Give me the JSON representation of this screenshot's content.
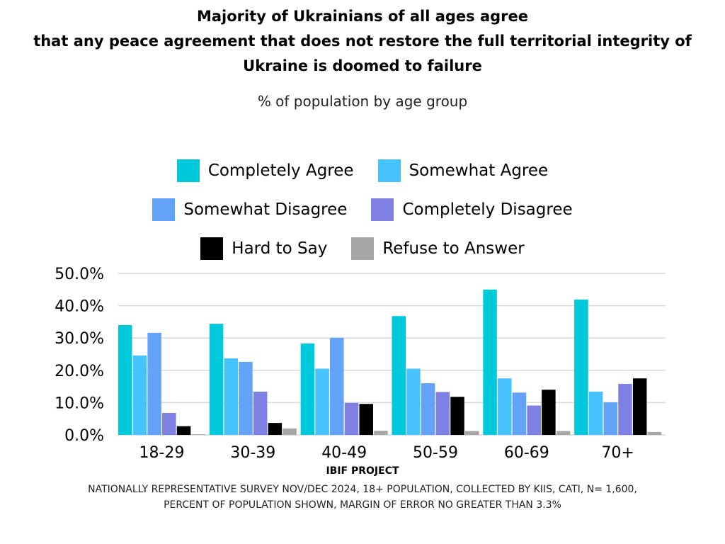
{
  "chart_data": {
    "type": "bar",
    "title": "Majority of Ukrainians of all ages agree that any peace agreement that does not restore the full territorial integrity of Ukraine is doomed to failure",
    "title_lines": [
      "Majority of Ukrainians of all ages agree",
      "that any peace agreement that does not restore the full territorial integrity of",
      "Ukraine is doomed to failure"
    ],
    "subtitle": "% of population by age group",
    "xlabel": "",
    "ylabel": "",
    "ylim": [
      0,
      50
    ],
    "yticks": [
      0,
      10,
      20,
      30,
      40,
      50
    ],
    "ytick_labels": [
      "0.0%",
      "10.0%",
      "20.0%",
      "30.0%",
      "40.0%",
      "50.0%"
    ],
    "grid": true,
    "legend_position": "top-center",
    "categories": [
      "18-29",
      "30-39",
      "40-49",
      "50-59",
      "60-69",
      "70+"
    ],
    "series": [
      {
        "name": "Completely Agree",
        "color": "#00C9DC",
        "values": [
          34.0,
          34.4,
          28.3,
          36.8,
          45.0,
          41.9
        ]
      },
      {
        "name": "Somewhat Agree",
        "color": "#46C3FC",
        "values": [
          24.6,
          23.7,
          20.5,
          20.5,
          17.5,
          13.4
        ]
      },
      {
        "name": "Somewhat Disagree",
        "color": "#62A3F8",
        "values": [
          31.6,
          22.6,
          30.1,
          16.0,
          13.1,
          10.1
        ]
      },
      {
        "name": "Completely Disagree",
        "color": "#7E80E4",
        "values": [
          6.8,
          13.4,
          9.9,
          13.3,
          9.1,
          15.8
        ]
      },
      {
        "name": "Hard to Say",
        "color": "#000000",
        "values": [
          2.7,
          3.7,
          9.6,
          11.8,
          14.0,
          17.5
        ]
      },
      {
        "name": "Refuse to Answer",
        "color": "#A6A6A6",
        "values": [
          0.2,
          2.0,
          1.3,
          1.2,
          1.2,
          0.9
        ]
      }
    ]
  },
  "footer": {
    "brand": "IBIF PROJECT",
    "note_line1": "NATIONALLY REPRESENTATIVE SURVEY NOV/DEC 2024, 18+ POPULATION, COLLECTED BY KIIS, CATI, N= 1,600,",
    "note_line2": "PERCENT OF POPULATION SHOWN, MARGIN OF ERROR NO GREATER THAN 3.3%"
  }
}
